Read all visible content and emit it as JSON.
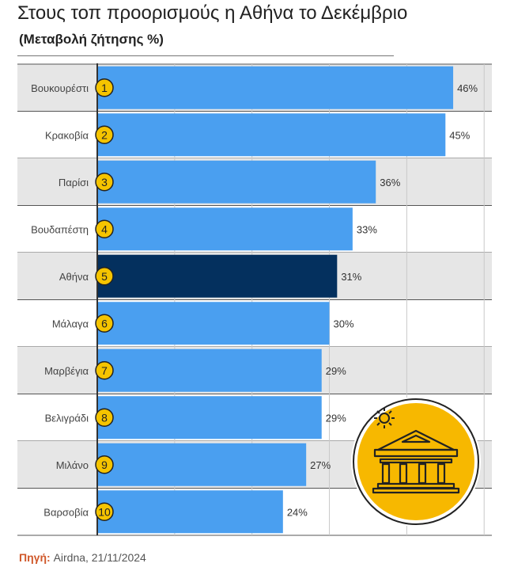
{
  "header": {
    "title": "Στους τοπ προορισμούς η Αθήνα το Δεκέμβριο",
    "subtitle": "(Μεταβολή ζήτησης %)"
  },
  "source": {
    "label": "Πηγή:",
    "text": "Airdna, 21/11/2024"
  },
  "colors": {
    "bar": "#4a9ff0",
    "highlight_bar": "#04305e",
    "rank_badge": "#f5c400",
    "row_shade": "#e6e6e6",
    "icon_circle": "#f7b800"
  },
  "chart_data": {
    "type": "bar",
    "orientation": "horizontal",
    "title": "Στους τοπ προορισμούς η Αθήνα το Δεκέμβριο",
    "subtitle": "(Μεταβολή ζήτησης %)",
    "categories": [
      "Βουκουρέστι",
      "Κρακοβία",
      "Παρίσι",
      "Βουδαπέστη",
      "Αθήνα",
      "Μάλαγα",
      "Μαρβέγια",
      "Βελιγράδι",
      "Μιλάνο",
      "Βαρσοβία"
    ],
    "ranks": [
      "1",
      "2",
      "3",
      "4",
      "5",
      "6",
      "7",
      "8",
      "9",
      "10"
    ],
    "values": [
      46,
      45,
      36,
      33,
      31,
      30,
      29,
      29,
      27,
      24
    ],
    "value_labels": [
      "46%",
      "45%",
      "36%",
      "33%",
      "31%",
      "30%",
      "29%",
      "29%",
      "27%",
      "24%"
    ],
    "highlight": "Αθήνα",
    "xlim": [
      0,
      51
    ],
    "grid": true,
    "unit": "%"
  }
}
